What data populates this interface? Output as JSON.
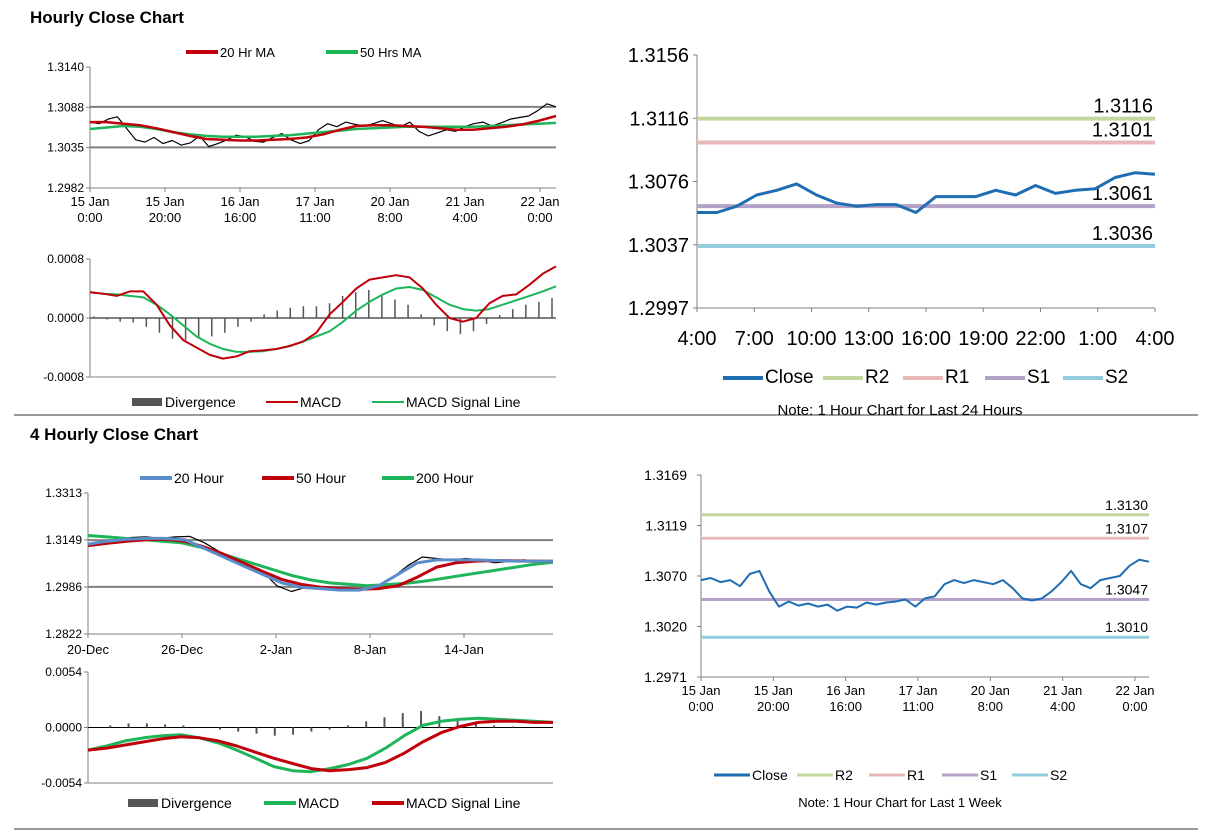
{
  "sections": {
    "hourly_title": "Hourly Close Chart",
    "four_hourly_title": "4 Hourly Close Chart"
  },
  "colors": {
    "red": "#c0000b",
    "green": "#1eb45a",
    "blue": "#1f6db3",
    "steel": "#5b8dc9",
    "r2": "#c3d69b",
    "r1": "#e6b9b8",
    "s1": "#b3a2c7",
    "s2": "#93cddd",
    "divergence": "#555555",
    "grid": "#808080"
  },
  "chart_data": [
    {
      "id": "hourly-price",
      "type": "line",
      "title": "",
      "legend": [
        "20 Hr MA",
        "50 Hrs MA"
      ],
      "y_ticks": [
        "1.3140",
        "1.3088",
        "1.3035",
        "1.2982"
      ],
      "ylim": [
        1.2982,
        1.314
      ],
      "gridlines": [
        1.3088,
        1.3035
      ],
      "x_ticks": [
        {
          "l1": "15 Jan",
          "l2": "0:00"
        },
        {
          "l1": "15 Jan",
          "l2": "20:00"
        },
        {
          "l1": "16 Jan",
          "l2": "16:00"
        },
        {
          "l1": "17 Jan",
          "l2": "11:00"
        },
        {
          "l1": "20 Jan",
          "l2": "8:00"
        },
        {
          "l1": "21 Jan",
          "l2": "4:00"
        },
        {
          "l1": "22 Jan",
          "l2": "0:00"
        }
      ],
      "series": [
        {
          "name": "Price",
          "values": [
            1.3068,
            1.3066,
            1.3072,
            1.3075,
            1.306,
            1.3045,
            1.3042,
            1.3048,
            1.304,
            1.3044,
            1.3038,
            1.3041,
            1.305,
            1.3036,
            1.304,
            1.3045,
            1.3051,
            1.3049,
            1.3043,
            1.3042,
            1.3048,
            1.3053,
            1.3045,
            1.304,
            1.3044,
            1.3058,
            1.3066,
            1.3062,
            1.3068,
            1.3065,
            1.3063,
            1.3066,
            1.307,
            1.3066,
            1.3062,
            1.3068,
            1.3056,
            1.305,
            1.3054,
            1.3058,
            1.3056,
            1.3062,
            1.3066,
            1.3068,
            1.3063,
            1.3067,
            1.3072,
            1.3074,
            1.3076,
            1.3083,
            1.3092,
            1.3088
          ]
        },
        {
          "name": "20 Hr MA",
          "values": [
            1.3068,
            1.3068,
            1.3066,
            1.3064,
            1.306,
            1.3055,
            1.305,
            1.3046,
            1.3045,
            1.3044,
            1.3044,
            1.3045,
            1.3046,
            1.3048,
            1.3052,
            1.3058,
            1.3063,
            1.3064,
            1.3064,
            1.3063,
            1.3062,
            1.306,
            1.3058,
            1.3058,
            1.306,
            1.3062,
            1.3065,
            1.307,
            1.3076
          ]
        },
        {
          "name": "50 Hrs MA",
          "values": [
            1.3059,
            1.3061,
            1.3063,
            1.3062,
            1.3059,
            1.3055,
            1.3052,
            1.305,
            1.3049,
            1.3049,
            1.3049,
            1.305,
            1.3051,
            1.3053,
            1.3055,
            1.3057,
            1.3059,
            1.306,
            1.3061,
            1.3062,
            1.3062,
            1.3062,
            1.3062,
            1.3062,
            1.3063,
            1.3064,
            1.3065,
            1.3066,
            1.3067
          ]
        }
      ]
    },
    {
      "id": "hourly-macd",
      "type": "line",
      "legend": [
        "Divergence",
        "MACD",
        "MACD Signal Line"
      ],
      "y_ticks": [
        "0.0008",
        "0.0000",
        "-0.0008"
      ],
      "ylim": [
        -0.0008,
        0.0008
      ],
      "series": [
        {
          "name": "MACD",
          "values": [
            0.00035,
            0.00033,
            0.0003,
            0.00036,
            0.00036,
            0.00018,
            -0.0001,
            -0.0003,
            -0.0004,
            -0.0005,
            -0.00055,
            -0.00052,
            -0.00045,
            -0.00044,
            -0.00042,
            -0.00038,
            -0.00032,
            -0.0002,
            5e-05,
            0.00022,
            0.0004,
            0.00052,
            0.00055,
            0.00058,
            0.00055,
            0.0004,
            0.00018,
            0.0,
            -5e-05,
            0.0,
            0.0002,
            0.0003,
            0.00032,
            0.00045,
            0.0006,
            0.0007
          ]
        },
        {
          "name": "MACD Signal Line",
          "values": [
            0.00035,
            0.00033,
            0.00032,
            0.0003,
            0.00028,
            0.00018,
            5e-05,
            -0.0001,
            -0.00025,
            -0.00035,
            -0.00042,
            -0.00046,
            -0.00046,
            -0.00045,
            -0.00042,
            -0.00038,
            -0.00032,
            -0.00025,
            -0.00018,
            -5e-05,
            0.0001,
            0.00022,
            0.00032,
            0.0004,
            0.00042,
            0.00038,
            0.00028,
            0.00018,
            0.00012,
            0.0001,
            0.00012,
            0.00018,
            0.00024,
            0.0003,
            0.00036,
            0.00043
          ]
        },
        {
          "name": "Divergence",
          "values": [
            2e-05,
            -2e-05,
            -5e-05,
            -6e-05,
            -0.00012,
            -0.0002,
            -0.00028,
            -0.0003,
            -0.00028,
            -0.00025,
            -0.0002,
            -0.00012,
            -5e-05,
            5e-05,
            0.0001,
            0.00014,
            0.00016,
            0.00016,
            0.0002,
            0.0003,
            0.00035,
            0.00038,
            0.00032,
            0.00025,
            0.00018,
            5e-05,
            -0.0001,
            -0.00018,
            -0.00022,
            -0.00018,
            -8e-05,
            4e-05,
            0.00012,
            0.00018,
            0.00022,
            0.00027
          ]
        }
      ]
    },
    {
      "id": "hourly-24h-close",
      "type": "line",
      "y_ticks": [
        "1.3156",
        "1.3116",
        "1.3076",
        "1.3037",
        "1.2997"
      ],
      "ylim": [
        1.2997,
        1.3156
      ],
      "x_ticks": [
        "4:00",
        "7:00",
        "10:00",
        "13:00",
        "16:00",
        "19:00",
        "22:00",
        "1:00",
        "4:00"
      ],
      "legend": [
        "Close",
        "R2",
        "R1",
        "S1",
        "S2"
      ],
      "note": "Note: 1 Hour Chart for Last 24 Hours",
      "levels": [
        {
          "name": "R2",
          "value": 1.3116,
          "label": "1.3116"
        },
        {
          "name": "R1",
          "value": 1.3101,
          "label": "1.3101"
        },
        {
          "name": "S1",
          "value": 1.3061,
          "label": "1.3061"
        },
        {
          "name": "S2",
          "value": 1.3036,
          "label": "1.3036"
        }
      ],
      "series": [
        {
          "name": "Close",
          "values": [
            1.3057,
            1.3057,
            1.3061,
            1.3068,
            1.3071,
            1.3075,
            1.3068,
            1.3063,
            1.3061,
            1.3062,
            1.3062,
            1.3057,
            1.3067,
            1.3067,
            1.3067,
            1.3071,
            1.3068,
            1.3074,
            1.3069,
            1.3071,
            1.3072,
            1.3079,
            1.3082,
            1.3081
          ]
        }
      ]
    },
    {
      "id": "four-hourly-price",
      "type": "line",
      "legend": [
        "20 Hour",
        "50 Hour",
        "200 Hour"
      ],
      "y_ticks": [
        "1.3313",
        "1.3149",
        "1.2986",
        "1.2822"
      ],
      "ylim": [
        1.2822,
        1.3313
      ],
      "gridlines": [
        1.3149,
        1.2986
      ],
      "x_ticks": [
        "20-Dec",
        "26-Dec",
        "2-Jan",
        "8-Jan",
        "14-Jan"
      ],
      "series": [
        {
          "name": "Price",
          "values": [
            1.313,
            1.314,
            1.315,
            1.3158,
            1.316,
            1.3155,
            1.316,
            1.3162,
            1.314,
            1.311,
            1.308,
            1.306,
            1.304,
            1.299,
            1.297,
            1.2985,
            1.298,
            1.2978,
            1.2975,
            1.2976,
            1.2985,
            1.302,
            1.306,
            1.309,
            1.3085,
            1.308,
            1.3085,
            1.308,
            1.307,
            1.3075,
            1.308,
            1.3075,
            1.3072
          ]
        },
        {
          "name": "20 Hour",
          "values": [
            1.3135,
            1.3145,
            1.3152,
            1.3155,
            1.3155,
            1.315,
            1.312,
            1.309,
            1.306,
            1.303,
            1.3,
            1.2985,
            1.298,
            1.2975,
            1.2975,
            1.299,
            1.303,
            1.307,
            1.308,
            1.308,
            1.308,
            1.3078,
            1.3076,
            1.3075,
            1.3075
          ]
        },
        {
          "name": "50 Hour",
          "values": [
            1.313,
            1.3138,
            1.3145,
            1.315,
            1.3152,
            1.3145,
            1.3125,
            1.31,
            1.307,
            1.304,
            1.3012,
            1.2995,
            1.2985,
            1.298,
            1.2978,
            1.298,
            1.299,
            1.302,
            1.3055,
            1.307,
            1.3076,
            1.3078,
            1.3077,
            1.3076,
            1.3075
          ]
        },
        {
          "name": "200 Hour",
          "values": [
            1.3165,
            1.316,
            1.3155,
            1.315,
            1.3145,
            1.314,
            1.3125,
            1.3105,
            1.3085,
            1.3065,
            1.3045,
            1.3025,
            1.301,
            1.3,
            1.2995,
            1.299,
            1.2994,
            1.2998,
            1.3005,
            1.3015,
            1.3025,
            1.3035,
            1.3045,
            1.3055,
            1.3065,
            1.3072
          ]
        }
      ]
    },
    {
      "id": "four-hourly-macd",
      "type": "line",
      "legend": [
        "Divergence",
        "MACD",
        "MACD Signal Line"
      ],
      "y_ticks": [
        "0.0054",
        "0.0000",
        "-0.0054"
      ],
      "ylim": [
        -0.0054,
        0.0054
      ],
      "series": [
        {
          "name": "MACD",
          "values": [
            -0.0022,
            -0.0018,
            -0.0013,
            -0.001,
            -0.0008,
            -0.0007,
            -0.001,
            -0.0015,
            -0.0022,
            -0.003,
            -0.0038,
            -0.0042,
            -0.0043,
            -0.004,
            -0.0036,
            -0.003,
            -0.002,
            -0.0008,
            0.0002,
            0.0006,
            0.0008,
            0.0009,
            0.0008,
            0.0007,
            0.0006,
            0.0005
          ]
        },
        {
          "name": "MACD Signal Line",
          "values": [
            -0.0022,
            -0.002,
            -0.0017,
            -0.0014,
            -0.0011,
            -0.0009,
            -0.001,
            -0.0013,
            -0.0018,
            -0.0024,
            -0.003,
            -0.0035,
            -0.004,
            -0.0042,
            -0.0041,
            -0.0039,
            -0.0034,
            -0.0025,
            -0.0014,
            -0.0005,
            0.0001,
            0.0005,
            0.0006,
            0.0006,
            0.0005,
            0.0005
          ]
        },
        {
          "name": "Divergence",
          "values": [
            0.0,
            0.0002,
            0.0004,
            0.0004,
            0.0003,
            0.0002,
            0.0,
            -0.0002,
            -0.0004,
            -0.0006,
            -0.0008,
            -0.0007,
            -0.0004,
            -0.0002,
            0.0002,
            0.0006,
            0.001,
            0.0014,
            0.0016,
            0.0011,
            0.0007,
            0.0004,
            0.0002,
            0.0001,
            0.0,
            0.0
          ]
        }
      ]
    },
    {
      "id": "hourly-1week-close",
      "type": "line",
      "y_ticks": [
        "1.3169",
        "1.3119",
        "1.3070",
        "1.3020",
        "1.2971"
      ],
      "ylim": [
        1.2971,
        1.3169
      ],
      "x_ticks": [
        {
          "l1": "15 Jan",
          "l2": "0:00"
        },
        {
          "l1": "15 Jan",
          "l2": "20:00"
        },
        {
          "l1": "16 Jan",
          "l2": "16:00"
        },
        {
          "l1": "17 Jan",
          "l2": "11:00"
        },
        {
          "l1": "20 Jan",
          "l2": "8:00"
        },
        {
          "l1": "21 Jan",
          "l2": "4:00"
        },
        {
          "l1": "22 Jan",
          "l2": "0:00"
        }
      ],
      "legend": [
        "Close",
        "R2",
        "R1",
        "S1",
        "S2"
      ],
      "note": "Note: 1 Hour Chart for  Last 1 Week",
      "levels": [
        {
          "name": "R2",
          "value": 1.313,
          "label": "1.3130"
        },
        {
          "name": "R1",
          "value": 1.3107,
          "label": "1.3107"
        },
        {
          "name": "S1",
          "value": 1.3047,
          "label": "1.3047"
        },
        {
          "name": "S2",
          "value": 1.301,
          "label": "1.3010"
        }
      ],
      "series": [
        {
          "name": "Close",
          "values": [
            1.3066,
            1.3068,
            1.3064,
            1.3066,
            1.306,
            1.3072,
            1.3075,
            1.3055,
            1.304,
            1.3045,
            1.3041,
            1.3043,
            1.304,
            1.3042,
            1.3036,
            1.304,
            1.3039,
            1.3044,
            1.3042,
            1.3044,
            1.3045,
            1.3047,
            1.304,
            1.3048,
            1.305,
            1.3062,
            1.3066,
            1.3063,
            1.3066,
            1.3064,
            1.3062,
            1.3066,
            1.3058,
            1.3048,
            1.3046,
            1.3048,
            1.3055,
            1.3064,
            1.3075,
            1.3062,
            1.3058,
            1.3066,
            1.3068,
            1.307,
            1.308,
            1.3086,
            1.3084
          ]
        }
      ]
    }
  ]
}
